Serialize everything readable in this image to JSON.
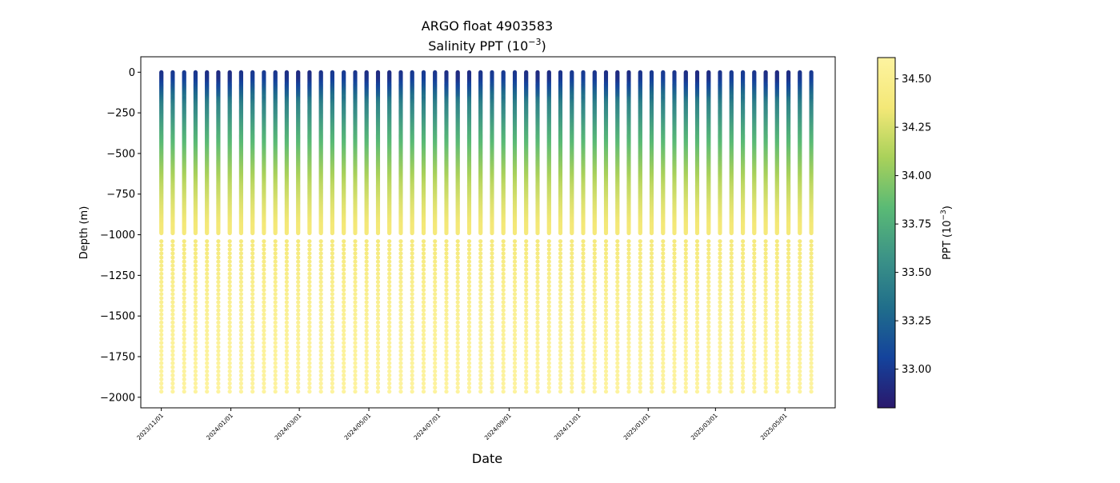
{
  "chart_data": {
    "type": "scatter",
    "title": "ARGO float 4903583",
    "subtitle_prefix": "Salinity PPT (10",
    "subtitle_exp": "−3",
    "subtitle_suffix": ")",
    "xlabel": "Date",
    "ylabel": "Depth (m)",
    "colorbar_label_prefix": "PPT (10",
    "colorbar_label_exp": "−3",
    "colorbar_label_suffix": ")",
    "colormap": [
      "#2a186c",
      "#14439c",
      "#206e8b",
      "#3c9387",
      "#5aba75",
      "#a9d15a",
      "#f4e877",
      "#fdf3a0"
    ],
    "xlim": [
      "2023-10-14",
      "2025-06-14"
    ],
    "ylim": [
      -2065,
      95
    ],
    "clim": [
      32.8,
      34.61
    ],
    "x_ticks": [
      "2023/11/01",
      "2024/01/01",
      "2024/03/01",
      "2024/05/01",
      "2024/07/01",
      "2024/09/01",
      "2024/11/01",
      "2025/01/01",
      "2025/03/01",
      "2025/05/01"
    ],
    "y_ticks": [
      "0",
      "−250",
      "−500",
      "−750",
      "−1000",
      "−1250",
      "−1500",
      "−1750",
      "−2000"
    ],
    "y_tick_values": [
      0,
      -250,
      -500,
      -750,
      -1000,
      -1250,
      -1500,
      -1750,
      -2000
    ],
    "colorbar_ticks": [
      "33.00",
      "33.25",
      "33.50",
      "33.75",
      "34.00",
      "34.25",
      "34.50"
    ],
    "colorbar_tick_values": [
      33.0,
      33.25,
      33.5,
      33.75,
      34.0,
      34.25,
      34.5
    ],
    "profile_dates": [
      "2023-11-01",
      "2023-11-11",
      "2023-11-21",
      "2023-12-01",
      "2023-12-11",
      "2023-12-21",
      "2023-12-31",
      "2024-01-10",
      "2024-01-20",
      "2024-01-30",
      "2024-02-09",
      "2024-02-19",
      "2024-02-29",
      "2024-03-10",
      "2024-03-20",
      "2024-03-30",
      "2024-04-09",
      "2024-04-19",
      "2024-04-29",
      "2024-05-09",
      "2024-05-19",
      "2024-05-29",
      "2024-06-08",
      "2024-06-18",
      "2024-06-28",
      "2024-07-08",
      "2024-07-18",
      "2024-07-28",
      "2024-08-07",
      "2024-08-17",
      "2024-08-27",
      "2024-09-06",
      "2024-09-16",
      "2024-09-26",
      "2024-10-06",
      "2024-10-16",
      "2024-10-26",
      "2024-11-05",
      "2024-11-15",
      "2024-11-25",
      "2024-12-05",
      "2024-12-15",
      "2024-12-25",
      "2025-01-04",
      "2025-01-14",
      "2025-01-24",
      "2025-02-03",
      "2025-02-13",
      "2025-02-23",
      "2025-03-05",
      "2025-03-15",
      "2025-03-25",
      "2025-04-04",
      "2025-04-14",
      "2025-04-24",
      "2025-05-04",
      "2025-05-14",
      "2025-05-24"
    ],
    "salinity_profile": {
      "depth": [
        0,
        -50,
        -100,
        -150,
        -200,
        -300,
        -400,
        -500,
        -600,
        -700,
        -800,
        -900,
        -1000,
        -1200,
        -1400,
        -1600,
        -1800,
        -2000
      ],
      "salinity": [
        32.95,
        33.0,
        33.15,
        33.3,
        33.45,
        33.62,
        33.78,
        33.92,
        34.05,
        34.17,
        34.26,
        34.33,
        34.38,
        34.45,
        34.52,
        34.56,
        34.59,
        34.6
      ]
    }
  }
}
